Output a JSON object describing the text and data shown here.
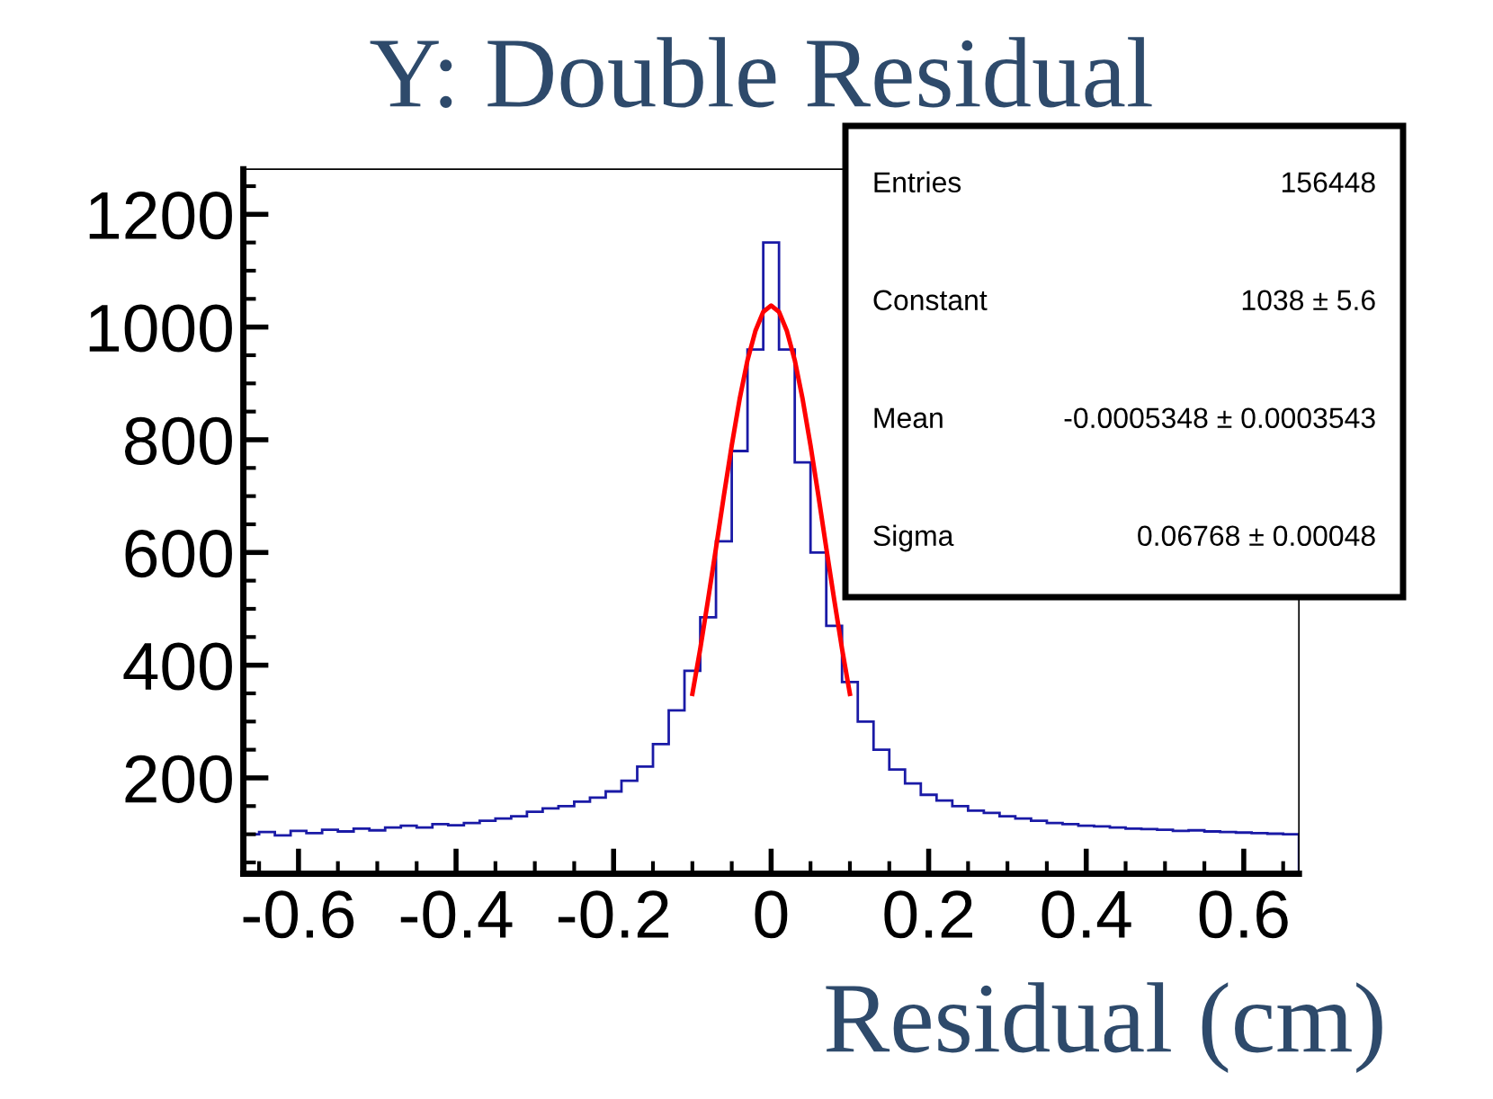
{
  "chart_data": {
    "type": "histogram",
    "title": "Y: Double Residual",
    "xlabel": "Residual (cm)",
    "bins": [
      -0.67,
      -0.65,
      -0.63,
      -0.61,
      -0.59,
      -0.57,
      -0.55,
      -0.53,
      -0.51,
      -0.49,
      -0.47,
      -0.45,
      -0.43,
      -0.41,
      -0.39,
      -0.37,
      -0.35,
      -0.33,
      -0.31,
      -0.29,
      -0.27,
      -0.25,
      -0.23,
      -0.21,
      -0.19,
      -0.17,
      -0.15,
      -0.13,
      -0.11,
      -0.09,
      -0.07,
      -0.05,
      -0.03,
      -0.01,
      0.01,
      0.03,
      0.05,
      0.07,
      0.09,
      0.11,
      0.13,
      0.15,
      0.17,
      0.19,
      0.21,
      0.23,
      0.25,
      0.27,
      0.29,
      0.31,
      0.33,
      0.35,
      0.37,
      0.39,
      0.41,
      0.43,
      0.45,
      0.47,
      0.49,
      0.51,
      0.53,
      0.55,
      0.57,
      0.59,
      0.61,
      0.63,
      0.65,
      0.67
    ],
    "series": [
      {
        "color": "#1a1aa6",
        "values": [
          100,
          104,
          98,
          106,
          102,
          108,
          105,
          110,
          107,
          112,
          115,
          112,
          118,
          116,
          120,
          124,
          128,
          132,
          140,
          146,
          150,
          158,
          165,
          176,
          195,
          220,
          260,
          320,
          390,
          485,
          620,
          780,
          960,
          1150,
          960,
          760,
          600,
          470,
          370,
          300,
          250,
          215,
          190,
          170,
          160,
          150,
          142,
          138,
          132,
          128,
          124,
          120,
          118,
          115,
          114,
          112,
          110,
          109,
          108,
          106,
          107,
          105,
          104,
          103,
          102,
          101,
          100
        ]
      },
      {
        "type": "line",
        "color": "#ff0000",
        "x": [
          -0.1,
          -0.09,
          -0.08,
          -0.07,
          -0.06,
          -0.05,
          -0.04,
          -0.03,
          -0.02,
          -0.01,
          0,
          0.01,
          0.02,
          0.03,
          0.04,
          0.05,
          0.06,
          0.07,
          0.08,
          0.09,
          0.1
        ],
        "values": [
          349,
          429,
          517,
          608,
          701,
          790,
          872,
          941,
          993,
          1027,
          1038,
          1027,
          993,
          941,
          872,
          790,
          701,
          608,
          517,
          429,
          349
        ]
      }
    ],
    "xlim": [
      -0.67,
      0.67
    ],
    "ylim": [
      30,
      1280
    ],
    "xticks": [
      -0.6,
      -0.4,
      -0.2,
      0,
      0.2,
      0.4,
      0.6
    ],
    "yticks": [
      200,
      400,
      600,
      800,
      1000,
      1200
    ],
    "grid": false,
    "legend": false,
    "annotations": [
      "Entries",
      "156448",
      "Constant",
      "1038 ± 5.6",
      "Mean",
      "-0.0005348 ± 0.0003543",
      "Sigma",
      "0.06768 ± 0.00048"
    ]
  }
}
